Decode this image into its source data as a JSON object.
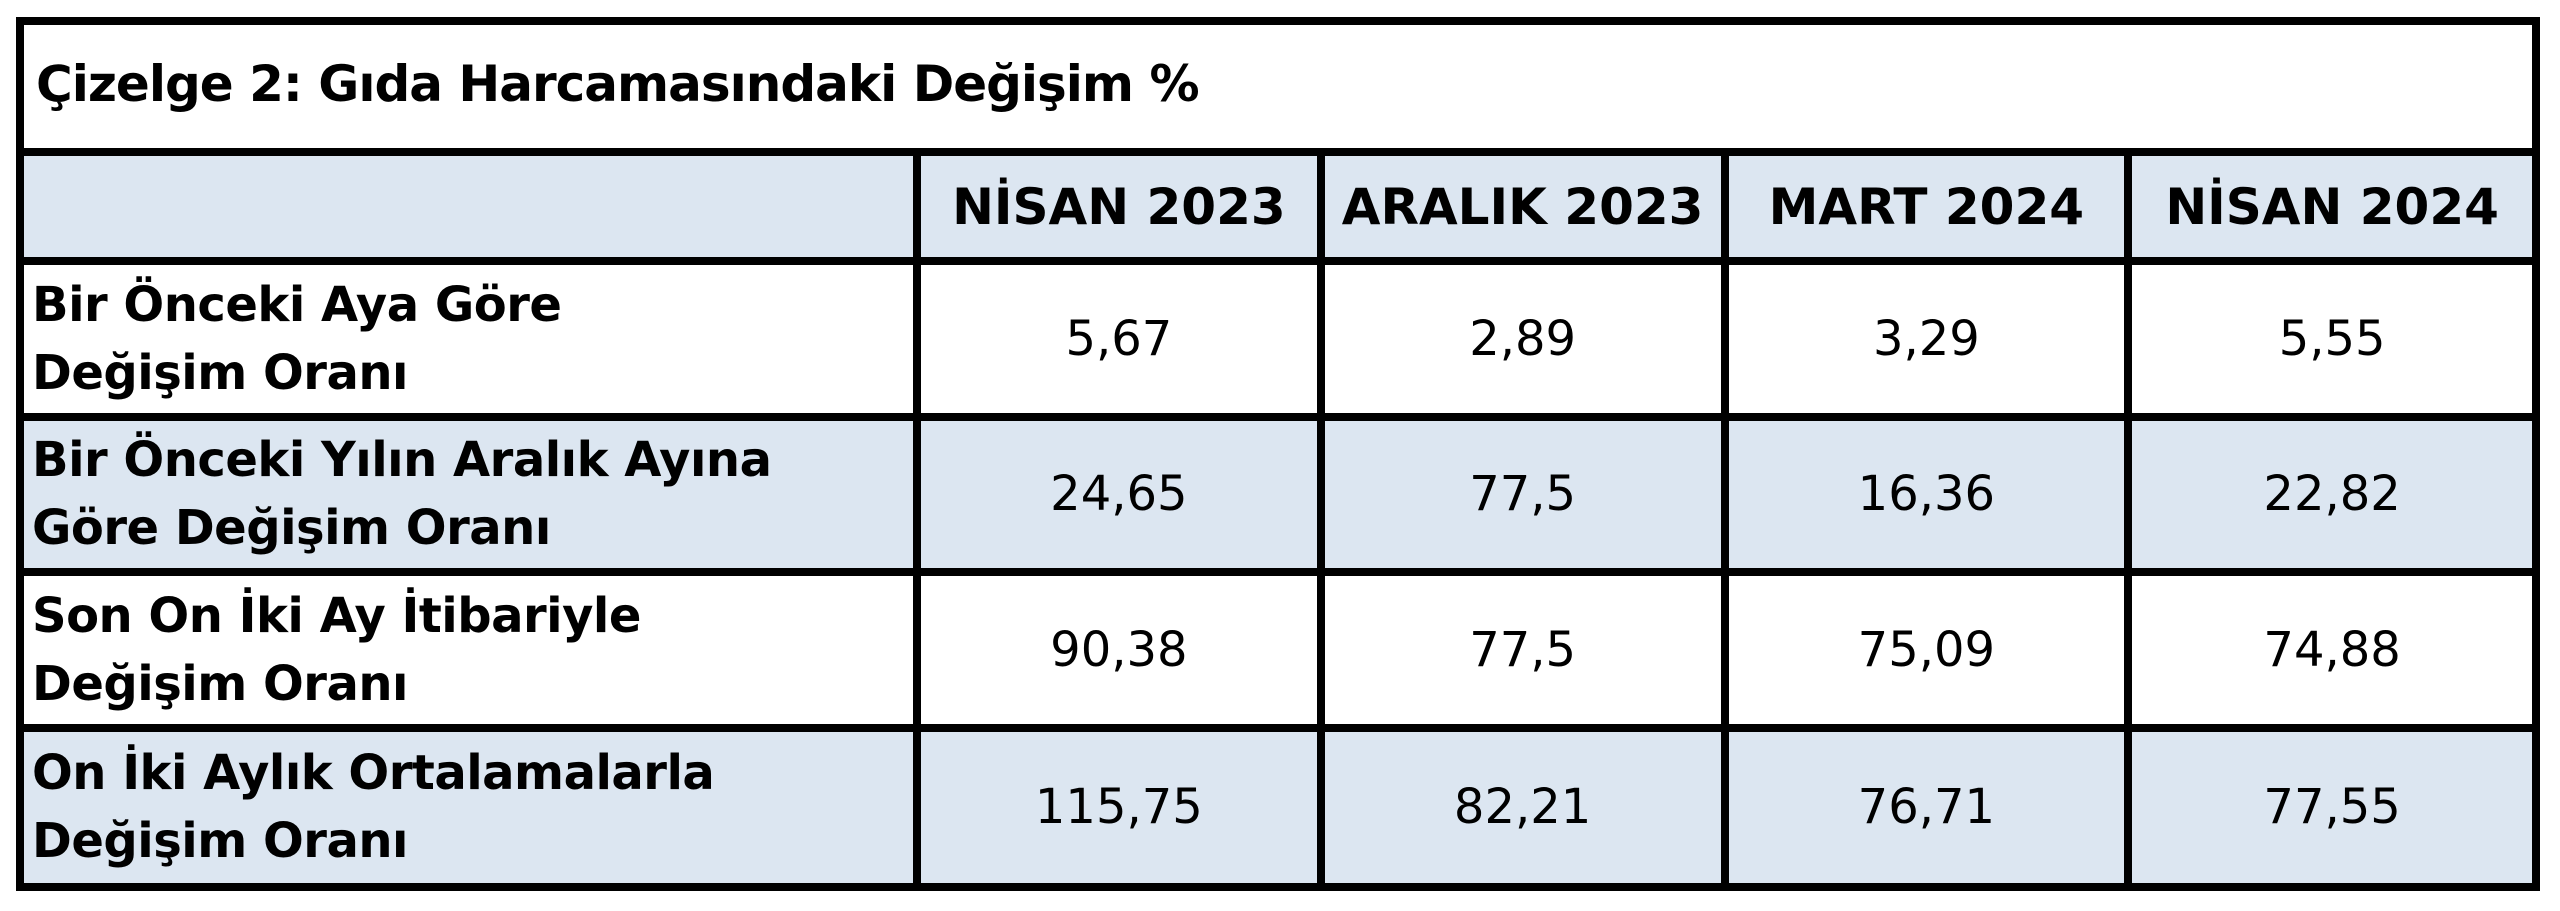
{
  "title": "Çizelge 2: Gıda Harcamasındaki Değişim %",
  "header": {
    "corner": "",
    "columns": [
      "NİSAN 2023",
      "ARALIK 2023",
      "MART 2024",
      "NİSAN 2024"
    ]
  },
  "rows": [
    {
      "label_line1": "Bir Önceki Aya Göre",
      "label_line2": "Değişim Oranı",
      "values": [
        "5,67",
        "2,89",
        "3,29",
        "5,55"
      ]
    },
    {
      "label_line1": "Bir Önceki Yılın Aralık Ayına",
      "label_line2": "Göre Değişim Oranı",
      "values": [
        "24,65",
        "77,5",
        "16,36",
        "22,82"
      ]
    },
    {
      "label_line1": "Son On İki Ay İtibariyle",
      "label_line2": "Değişim Oranı",
      "values": [
        "90,38",
        "77,5",
        "75,09",
        "74,88"
      ]
    },
    {
      "label_line1": "On İki Aylık Ortalamalarla",
      "label_line2": "Değişim Oranı",
      "values": [
        "115,75",
        "82,21",
        "76,71",
        "77,55"
      ]
    }
  ],
  "colors": {
    "border": "#000000",
    "shade": "#dce6f1",
    "background": "#ffffff"
  }
}
